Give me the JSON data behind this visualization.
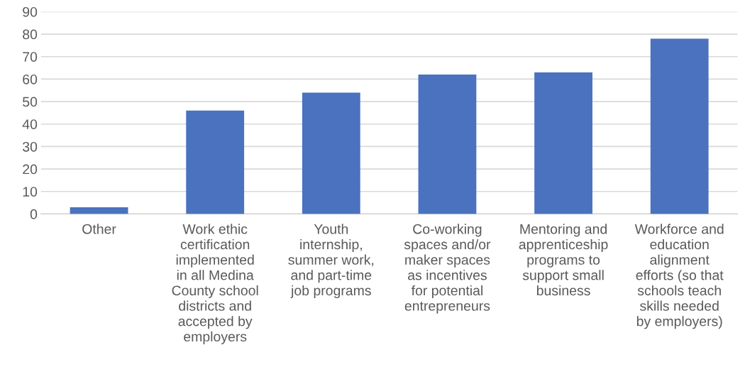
{
  "chart_data": {
    "type": "bar",
    "categories": [
      "Other",
      "Work ethic certification implemented in all Medina County school districts and accepted by employers",
      "Youth internship, summer work, and part-time job programs",
      "Co-working spaces and/or maker spaces as incentives for potential entrepreneurs",
      "Mentoring and apprenticeship programs to support small business",
      "Workforce and education alignment efforts (so that schools teach skills needed by employers)"
    ],
    "values": [
      3,
      46,
      54,
      62,
      63,
      78
    ],
    "color": "#4a72bf",
    "ylim": [
      0,
      90
    ],
    "yticks": [
      0,
      10,
      20,
      30,
      40,
      50,
      60,
      70,
      80,
      90
    ],
    "grid": "y",
    "legend": false
  }
}
